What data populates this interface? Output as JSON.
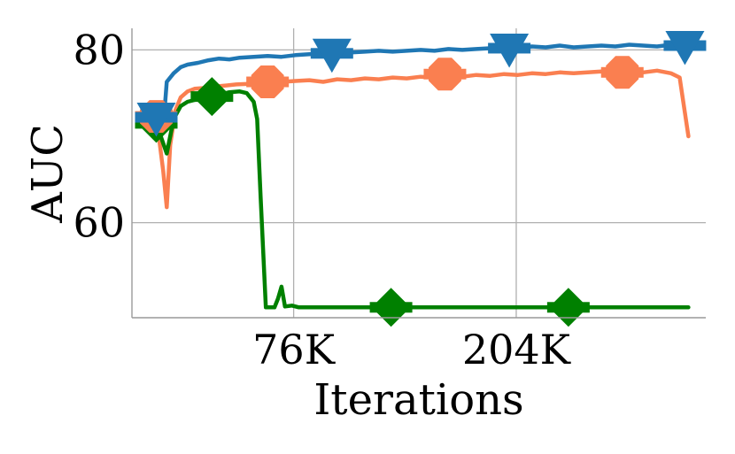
{
  "chart_data": {
    "type": "line",
    "xlabel": "Iterations",
    "ylabel": "AUC",
    "xlim": [
      0,
      330
    ],
    "ylim": [
      49,
      82.5
    ],
    "xticks": [
      {
        "value": 93,
        "label": "76K"
      },
      {
        "value": 221,
        "label": "204K"
      }
    ],
    "yticks": [
      {
        "value": 60,
        "label": "60"
      },
      {
        "value": 80,
        "label": "80"
      }
    ],
    "grid": true,
    "series": [
      {
        "color": "#1f77b4",
        "marker": "triangle-down",
        "x": [
          14,
          18,
          20,
          24,
          28,
          32,
          38,
          44,
          50,
          56,
          62,
          70,
          78,
          86,
          94,
          102,
          110,
          118,
          126,
          134,
          142,
          150,
          158,
          166,
          174,
          182,
          190,
          198,
          206,
          214,
          222,
          230,
          238,
          246,
          254,
          262,
          270,
          278,
          286,
          294,
          302,
          310,
          318,
          322
        ],
        "y": [
          72.2,
          71.0,
          76.3,
          77.3,
          78.0,
          78.3,
          78.5,
          78.8,
          79.0,
          78.9,
          79.1,
          79.2,
          79.3,
          79.2,
          79.4,
          79.5,
          79.6,
          79.5,
          79.7,
          79.8,
          79.9,
          79.8,
          79.9,
          80.0,
          79.9,
          80.1,
          80.0,
          80.1,
          80.2,
          80.3,
          80.1,
          80.4,
          80.3,
          80.5,
          80.3,
          80.4,
          80.5,
          80.4,
          80.6,
          80.5,
          80.4,
          80.6,
          80.5,
          80.5
        ],
        "marker_x": [
          14,
          115,
          217,
          318
        ],
        "marker_y": [
          72.2,
          79.6,
          80.2,
          80.5
        ]
      },
      {
        "color": "#fa7f50",
        "marker": "octagon",
        "x": [
          14,
          18,
          20,
          22,
          25,
          28,
          32,
          36,
          42,
          50,
          60,
          70,
          78,
          86,
          94,
          102,
          110,
          118,
          126,
          134,
          142,
          150,
          158,
          166,
          174,
          182,
          190,
          198,
          206,
          214,
          222,
          230,
          238,
          246,
          254,
          262,
          270,
          278,
          286,
          294,
          302,
          310,
          315,
          320
        ],
        "y": [
          72.3,
          66.0,
          61.8,
          69.0,
          73.0,
          74.5,
          75.2,
          75.5,
          75.6,
          75.8,
          76.0,
          76.1,
          76.2,
          76.3,
          76.4,
          76.5,
          76.3,
          76.6,
          76.5,
          76.7,
          76.6,
          76.8,
          76.7,
          76.9,
          76.8,
          77.0,
          76.9,
          77.1,
          77.0,
          77.2,
          77.1,
          77.3,
          77.2,
          77.4,
          77.3,
          77.4,
          77.5,
          77.4,
          77.5,
          77.4,
          77.6,
          77.3,
          76.8,
          70.0
        ],
        "marker_x": [
          14,
          78,
          180,
          282
        ],
        "marker_y": [
          72.3,
          76.3,
          77.2,
          77.4
        ]
      },
      {
        "color": "#008000",
        "marker": "diamond",
        "x": [
          14,
          20,
          24,
          28,
          32,
          38,
          44,
          50,
          56,
          62,
          66,
          70,
          72,
          74,
          77,
          82,
          84,
          86,
          88,
          92,
          96,
          110,
          130,
          160,
          190,
          220,
          250,
          280,
          310,
          320
        ],
        "y": [
          71.5,
          68.0,
          72.0,
          73.5,
          74.0,
          74.3,
          74.5,
          74.8,
          75.1,
          75.2,
          75.0,
          74.0,
          72.0,
          63.0,
          50.2,
          50.2,
          51.2,
          52.6,
          50.3,
          50.4,
          50.2,
          50.2,
          50.2,
          50.2,
          50.2,
          50.2,
          50.2,
          50.2,
          50.2,
          50.2
        ],
        "marker_x": [
          14,
          46,
          149,
          251
        ],
        "marker_y": [
          71.5,
          74.6,
          50.2,
          50.2
        ]
      }
    ]
  }
}
